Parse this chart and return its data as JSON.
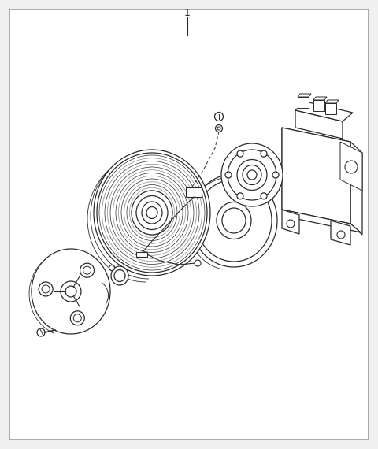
{
  "title": "1",
  "bg_color": "#f0f0f0",
  "border_color": "#999999",
  "line_color": "#2a2a2a",
  "fill_color": "white",
  "fig_width": 4.8,
  "fig_height": 5.7,
  "dpi": 100,
  "xlim": [
    0,
    480
  ],
  "ylim": [
    0,
    570
  ]
}
